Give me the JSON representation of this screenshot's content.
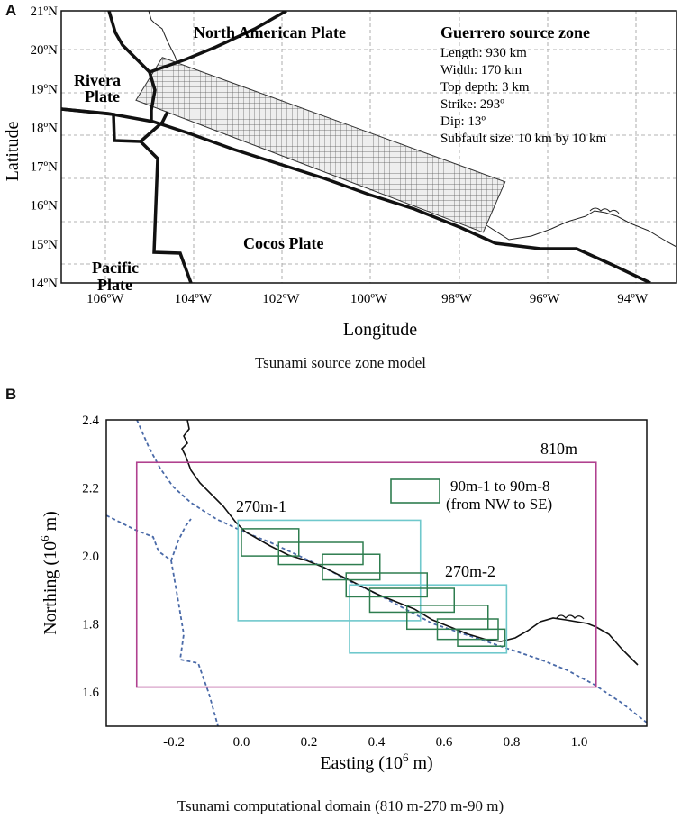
{
  "panel_a": {
    "letter": "A",
    "caption": "Tsunami source zone model",
    "xlabel": "Longitude",
    "ylabel": "Latitude",
    "x_ticks": [
      "106ºW",
      "104ºW",
      "102ºW",
      "100ºW",
      "98ºW",
      "96ºW",
      "94ºW"
    ],
    "x_tick_values": [
      -106,
      -104,
      -102,
      -100,
      -98,
      -96,
      -94
    ],
    "y_ticks": [
      "21ºN",
      "20ºN",
      "19ºN",
      "18ºN",
      "17ºN",
      "16ºN",
      "15ºN",
      "14ºN"
    ],
    "y_tick_values": [
      21,
      20,
      19,
      18,
      17,
      16,
      15,
      14
    ],
    "xlim": [
      -107,
      -93
    ],
    "ylim": [
      14,
      21
    ],
    "plate_labels": {
      "north_american": "North American Plate",
      "rivera_1": "Rivera",
      "rivera_2": "Plate",
      "cocos": "Cocos Plate",
      "pacific_1": "Pacific",
      "pacific_2": "Plate"
    },
    "source_zone": {
      "title": "Guerrero source zone",
      "length": "Length: 930 km",
      "width": "Width: 170 km",
      "top_depth": "Top depth: 3 km",
      "strike": "Strike: 293º",
      "dip": "Dip: 13º",
      "subfault": "Subfault size: 10 km by 10 km"
    },
    "grid_corners_lonlat": [
      [
        -105.3,
        18.7
      ],
      [
        -104.7,
        19.8
      ],
      [
        -96.9,
        16.6
      ],
      [
        -97.4,
        15.3
      ]
    ]
  },
  "panel_b": {
    "letter": "B",
    "caption": "Tsunami computational domain (810 m-270 m-90 m)",
    "xlabel_main": "Easting (10",
    "xlabel_exp": "6",
    "xlabel_end": " m)",
    "ylabel_main": "Northing (10",
    "ylabel_exp": "6",
    "ylabel_end": " m)",
    "x_ticks": [
      "-0.2",
      "0.0",
      "0.2",
      "0.4",
      "0.6",
      "0.8",
      "1.0"
    ],
    "x_tick_values": [
      -0.2,
      0.0,
      0.2,
      0.4,
      0.6,
      0.8,
      1.0
    ],
    "y_ticks": [
      "2.4",
      "2.2",
      "2.0",
      "1.8",
      "1.6"
    ],
    "y_tick_values": [
      2.4,
      2.2,
      2.0,
      1.8,
      1.6
    ],
    "xlim": [
      -0.4,
      1.2
    ],
    "ylim": [
      1.5,
      2.4
    ],
    "label_810": "810m",
    "label_270_1": "270m-1",
    "label_270_2": "270m-2",
    "legend_line1": "90m-1 to 90m-8",
    "legend_line2": "(from NW to SE)",
    "colors": {
      "d810": "#b0418f",
      "d270": "#6fc8cc",
      "d90": "#2e7d4f",
      "boundary": "#4a6aa8",
      "coast": "#111111"
    },
    "domain_810": {
      "x": [
        -0.31,
        1.05
      ],
      "y": [
        1.615,
        2.275
      ]
    },
    "domains_270": [
      {
        "x": [
          -0.01,
          0.53
        ],
        "y": [
          1.81,
          2.105
        ]
      },
      {
        "x": [
          0.32,
          0.785
        ],
        "y": [
          1.715,
          1.915
        ]
      }
    ],
    "domains_90": [
      {
        "x": [
          0.0,
          0.17
        ],
        "y": [
          2.0,
          2.08
        ]
      },
      {
        "x": [
          0.11,
          0.36
        ],
        "y": [
          1.975,
          2.04
        ]
      },
      {
        "x": [
          0.24,
          0.41
        ],
        "y": [
          1.93,
          2.005
        ]
      },
      {
        "x": [
          0.31,
          0.55
        ],
        "y": [
          1.88,
          1.95
        ]
      },
      {
        "x": [
          0.38,
          0.63
        ],
        "y": [
          1.835,
          1.905
        ]
      },
      {
        "x": [
          0.49,
          0.73
        ],
        "y": [
          1.785,
          1.855
        ]
      },
      {
        "x": [
          0.58,
          0.76
        ],
        "y": [
          1.755,
          1.815
        ]
      },
      {
        "x": [
          0.64,
          0.78
        ],
        "y": [
          1.735,
          1.785
        ]
      }
    ]
  }
}
